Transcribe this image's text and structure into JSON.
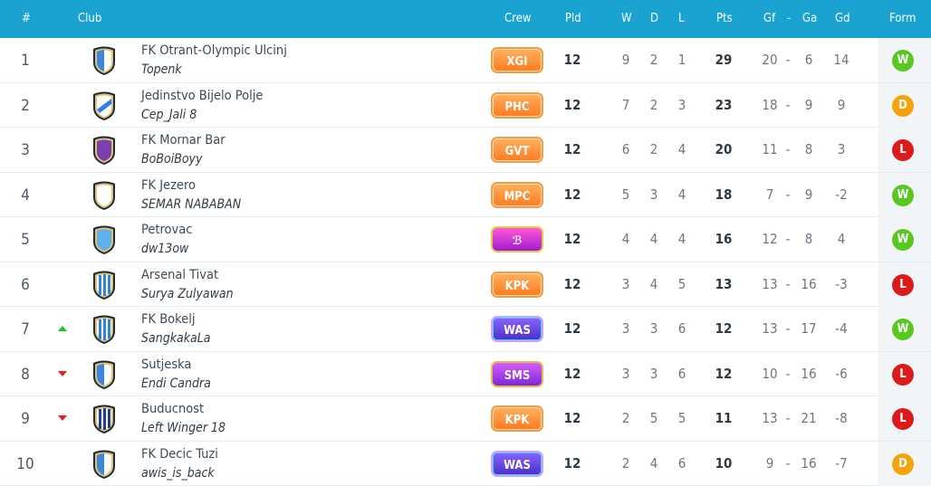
{
  "header": {
    "rank": "#",
    "club": "Club",
    "crew": "Crew",
    "pld": "Pld",
    "w": "W",
    "d": "D",
    "l": "L",
    "pts": "Pts",
    "gf": "Gf",
    "dash": "-",
    "ga": "Ga",
    "gd": "Gd",
    "form": "Form"
  },
  "rows": [
    {
      "rank": "1",
      "club": "FK Otrant-Olympic Ulcinj",
      "manager": "Topenk",
      "crew": "XGI",
      "pld": "12",
      "w": "9",
      "d": "2",
      "l": "1",
      "pts": "29",
      "gf": "20",
      "ga": "6",
      "gd": "14",
      "form": "W",
      "trend": "",
      "badge": "blue-white",
      "crew_style": "orange"
    },
    {
      "rank": "2",
      "club": "Jedinstvo Bijelo Polje",
      "manager": "Cep_Jali 8",
      "crew": "PHC",
      "pld": "12",
      "w": "7",
      "d": "2",
      "l": "3",
      "pts": "23",
      "gf": "18",
      "ga": "9",
      "gd": "9",
      "form": "D",
      "trend": "",
      "badge": "diagonal",
      "crew_style": "orange"
    },
    {
      "rank": "3",
      "club": "FK Mornar Bar",
      "manager": "BoBoiBoyy",
      "crew": "GVT",
      "pld": "12",
      "w": "6",
      "d": "2",
      "l": "4",
      "pts": "20",
      "gf": "11",
      "ga": "8",
      "gd": "3",
      "form": "L",
      "trend": "",
      "badge": "purple",
      "crew_style": "orange"
    },
    {
      "rank": "4",
      "club": "FK Jezero",
      "manager": "SEMAR NABABAN",
      "crew": "MPC",
      "pld": "12",
      "w": "5",
      "d": "3",
      "l": "4",
      "pts": "18",
      "gf": "7",
      "ga": "9",
      "gd": "-2",
      "form": "W",
      "trend": "",
      "badge": "white",
      "crew_style": "orange"
    },
    {
      "rank": "5",
      "club": "Petrovac",
      "manager": "dw13ow",
      "crew": "ℬ",
      "pld": "12",
      "w": "4",
      "d": "4",
      "l": "4",
      "pts": "16",
      "gf": "12",
      "ga": "8",
      "gd": "4",
      "form": "W",
      "trend": "",
      "badge": "skyblue",
      "crew_style": "magenta"
    },
    {
      "rank": "6",
      "club": "Arsenal Tivat",
      "manager": "Surya Zulyawan",
      "crew": "KPK",
      "pld": "12",
      "w": "3",
      "d": "4",
      "l": "5",
      "pts": "13",
      "gf": "13",
      "ga": "16",
      "gd": "-3",
      "form": "L",
      "trend": "",
      "badge": "stripes",
      "crew_style": "orange"
    },
    {
      "rank": "7",
      "club": "FK Bokelj",
      "manager": "SangkakaLa",
      "crew": "WAS",
      "pld": "12",
      "w": "3",
      "d": "3",
      "l": "6",
      "pts": "12",
      "gf": "13",
      "ga": "17",
      "gd": "-4",
      "form": "W",
      "trend": "up",
      "badge": "stripes",
      "crew_style": "violet"
    },
    {
      "rank": "8",
      "club": "Sutjeska",
      "manager": "Endi Candra",
      "crew": "SMS",
      "pld": "12",
      "w": "3",
      "d": "3",
      "l": "6",
      "pts": "12",
      "gf": "10",
      "ga": "16",
      "gd": "-6",
      "form": "L",
      "trend": "down",
      "badge": "blue-white",
      "crew_style": "purple"
    },
    {
      "rank": "9",
      "club": "Buducnost",
      "manager": "Left Winger 18",
      "crew": "KPK",
      "pld": "12",
      "w": "2",
      "d": "5",
      "l": "5",
      "pts": "11",
      "gf": "13",
      "ga": "21",
      "gd": "-8",
      "form": "L",
      "trend": "down",
      "badge": "navy-stripes",
      "crew_style": "orange"
    },
    {
      "rank": "10",
      "club": "FK Decic Tuzi",
      "manager": "awis_is_back",
      "crew": "WAS",
      "pld": "12",
      "w": "2",
      "d": "4",
      "l": "6",
      "pts": "10",
      "gf": "9",
      "ga": "16",
      "gd": "-7",
      "form": "D",
      "trend": "",
      "badge": "blue-white",
      "crew_style": "violet"
    }
  ],
  "colors": {
    "header": "#1aa3d1",
    "win": "#56c81f",
    "draw": "#f4a40a",
    "loss": "#dd1a1a"
  }
}
